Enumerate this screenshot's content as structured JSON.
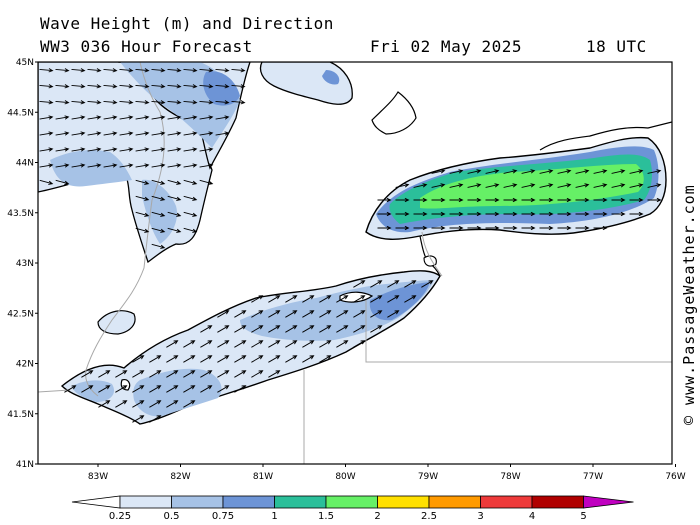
{
  "header": {
    "title": "Wave Height (m) and Direction",
    "model": "WW3 036 Hour Forecast",
    "date": "Fri 02 May 2025",
    "time": "18 UTC"
  },
  "credit": "© www.PassageWeather.com",
  "axes": {
    "lat_ticks": [
      "45N",
      "44.5N",
      "44N",
      "43.5N",
      "43N",
      "42.5N",
      "42N",
      "41.5N",
      "41N"
    ],
    "lon_ticks": [
      "83W",
      "82W",
      "81W",
      "80W",
      "79W",
      "78W",
      "77W",
      "76W"
    ],
    "lat_range": [
      41,
      45
    ],
    "lon_range": [
      -83.75,
      -76
    ]
  },
  "legend": {
    "labels": [
      "0.25",
      "0.5",
      "0.75",
      "1",
      "1.5",
      "2",
      "2.5",
      "3",
      "4",
      "5"
    ],
    "colors": [
      "#ffffff",
      "#dbe7f6",
      "#a6c2e6",
      "#6d94d6",
      "#2bbf9a",
      "#66f066",
      "#ffe000",
      "#ff9a00",
      "#ee3a3a",
      "#b00000",
      "#c000c0"
    ]
  },
  "colors": {
    "land": "#ffffff",
    "coast": "#000000",
    "border": "#a8a8a8",
    "arrow": "#000000"
  }
}
